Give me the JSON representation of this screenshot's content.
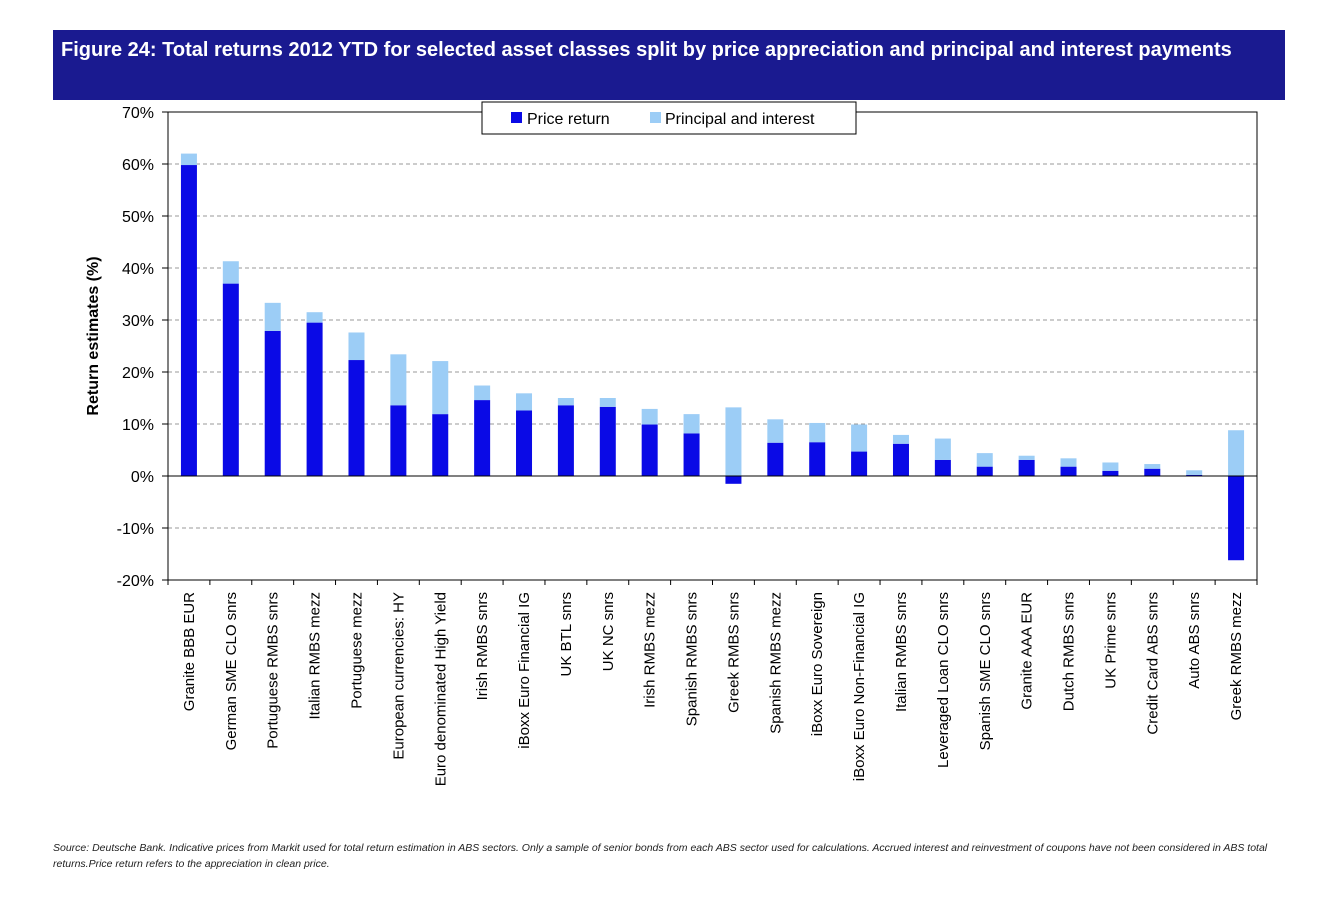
{
  "figure": {
    "title": "Figure 24: Total returns 2012 YTD for selected asset classes split by price appreciation and principal and interest payments",
    "source": "Source: Deutsche Bank. Indicative prices from Markit used for total return estimation in ABS  sectors. Only a sample of senior bonds from each ABS sector used for calculations. Accrued interest and reinvestment of coupons have not been considered in ABS total returns.Price return refers to the appreciation in clean price."
  },
  "colors": {
    "title_bg": "#1a1a90",
    "price_return": "#0a0ae6",
    "principal_interest": "#9ccdf6"
  },
  "chart_data": {
    "type": "bar",
    "stacked": true,
    "title": "Figure 24: Total returns 2012 YTD for selected asset classes split by price appreciation and principal and interest payments",
    "xlabel": "",
    "ylabel": "Return estimates (%)",
    "ylim": [
      -20,
      70
    ],
    "yticks": [
      -20,
      -10,
      0,
      10,
      20,
      30,
      40,
      50,
      60,
      70
    ],
    "ytick_labels": [
      "-20%",
      "-10%",
      "0%",
      "10%",
      "20%",
      "30%",
      "40%",
      "50%",
      "60%",
      "70%"
    ],
    "grid": "horizontal dashed",
    "legend_position": "top-center",
    "categories": [
      "Granite BBB EUR",
      "German SME CLO snrs",
      "Portuguese RMBS snrs",
      "Italian RMBS mezz",
      "Portuguese mezz",
      "European currencies: HY",
      "Euro denominated High Yield",
      "Irish RMBS snrs",
      "iBoxx Euro Financial IG",
      "UK BTL snrs",
      "UK NC snrs",
      "Irish RMBS mezz",
      "Spanish RMBS snrs",
      "Greek RMBS snrs",
      "Spanish RMBS mezz",
      "iBoxx Euro Sovereign",
      "iBoxx Euro Non-Financial IG",
      "Italian RMBS snrs",
      "Leveraged Loan CLO snrs",
      "Spanish SME CLO snrs",
      "Granite AAA EUR",
      "Dutch RMBS snrs",
      "UK Prime snrs",
      "Credit Card ABS snrs",
      "Auto ABS snrs",
      "Greek RMBS mezz"
    ],
    "series": [
      {
        "name": "Price return",
        "values": [
          59.8,
          37.0,
          27.9,
          29.5,
          22.3,
          13.6,
          11.9,
          14.6,
          12.6,
          13.6,
          13.3,
          9.9,
          8.2,
          -1.5,
          6.4,
          6.5,
          4.7,
          6.2,
          3.1,
          1.8,
          3.1,
          1.8,
          1.0,
          1.4,
          0.2,
          -16.2
        ]
      },
      {
        "name": "Principal and interest",
        "values": [
          2.2,
          4.3,
          5.4,
          2.0,
          5.3,
          9.8,
          10.2,
          2.8,
          3.3,
          1.4,
          1.7,
          3.0,
          3.7,
          13.2,
          4.5,
          3.7,
          5.2,
          1.7,
          4.1,
          2.6,
          0.8,
          1.6,
          1.6,
          0.9,
          0.9,
          8.8
        ]
      }
    ]
  }
}
